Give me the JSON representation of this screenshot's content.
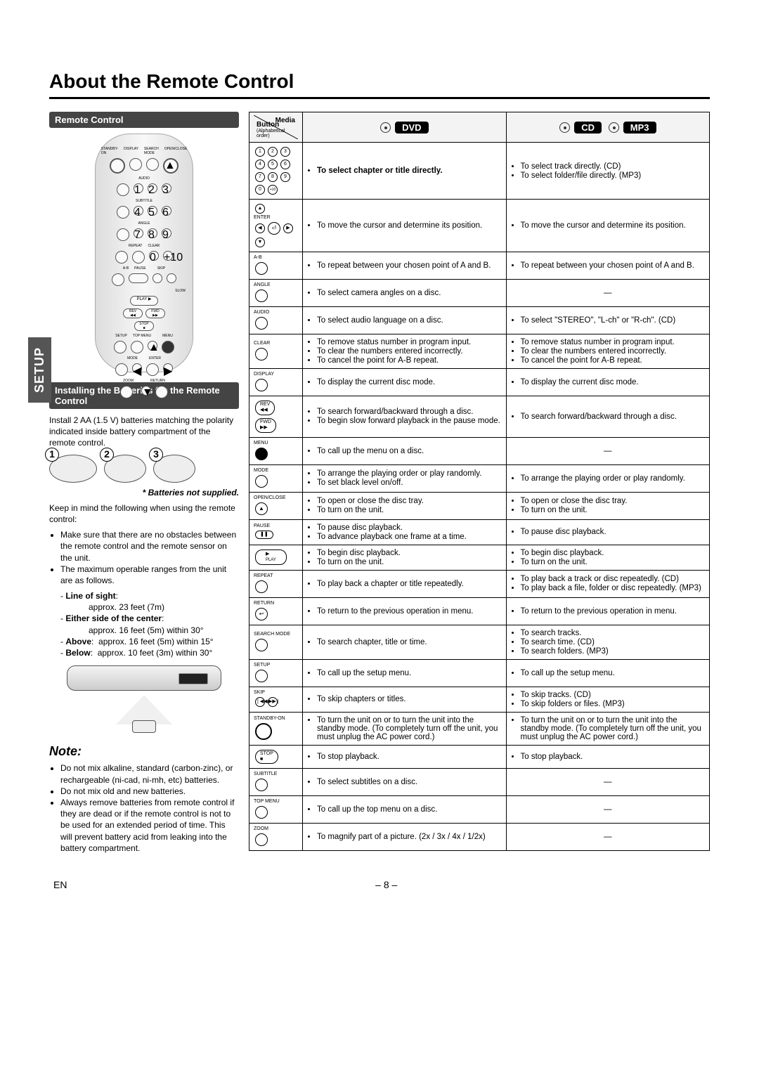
{
  "page": {
    "title": "About the Remote Control",
    "side_tab": "SETUP",
    "footer_left": "EN",
    "footer_center": "– 8 –"
  },
  "left": {
    "remote_header": "Remote Control",
    "install_header": "Installing the Batteries for the Remote Control",
    "install_para": "Install 2 AA (1.5 V) batteries matching the polarity indicated inside battery compartment of the remote control.",
    "steps": [
      "1",
      "2",
      "3"
    ],
    "not_supplied": "* Batteries not supplied.",
    "keep": "Keep in mind the following when using the remote control:",
    "bul1": "Make sure that there are no obstacles between the remote control and the remote sensor on the unit.",
    "bul2": "The maximum operable ranges from the unit are as follows.",
    "los_label": "Line of sight",
    "los_val": "approx. 23 feet (7m)",
    "side_label": "Either side of the center",
    "side_val": "approx. 16 feet (5m) within 30°",
    "above_label": "Above",
    "above_val": "approx. 16 feet (5m) within 15°",
    "below_label": "Below",
    "below_val": "approx. 10 feet (3m) within 30°",
    "note_title": "Note:",
    "note1": "Do not mix alkaline, standard (carbon-zinc), or rechargeable (ni-cad, ni-mh, etc) batteries.",
    "note2": "Do not mix old and new batteries.",
    "note3": "Always remove batteries from remote control if they are dead or if the remote control is not to be used for an extended period of time. This will prevent battery acid from leaking into the battery compartment."
  },
  "table": {
    "hdr_media": "Media",
    "hdr_button": "Button",
    "hdr_button_sub": "(Alphabetical order)",
    "hdr_dvd": "DVD",
    "hdr_cd": "CD",
    "hdr_mp3": "MP3",
    "rows": [
      {
        "icon": "numpad",
        "dvd": [
          "To select chapter or title directly."
        ],
        "cd": [
          "To select track directly. (CD)",
          "To select folder/file directly. (MP3)"
        ],
        "dvd_bold": true
      },
      {
        "icon": "arrows",
        "lbl": "ENTER",
        "dvd": [
          "To move the cursor and determine its position."
        ],
        "cd": [
          "To move the cursor and determine its position."
        ]
      },
      {
        "icon": "btn",
        "lbl": "A-B",
        "dvd": [
          "To repeat between your chosen point of A and B."
        ],
        "cd": [
          "To repeat between your chosen point of A and B."
        ]
      },
      {
        "icon": "btn",
        "lbl": "ANGLE",
        "dvd": [
          "To select camera angles on a disc."
        ],
        "cd": "dash"
      },
      {
        "icon": "btn",
        "lbl": "AUDIO",
        "dvd": [
          "To select audio language on a disc."
        ],
        "cd": [
          "To select \"STEREO\", \"L-ch\" or \"R-ch\". (CD)"
        ]
      },
      {
        "icon": "btn",
        "lbl": "CLEAR",
        "dvd": [
          "To remove status number in program input.",
          "To clear the numbers entered incorrectly.",
          "To cancel the point for A-B repeat."
        ],
        "cd": [
          "To remove status number in program input.",
          "To clear the numbers entered incorrectly.",
          "To cancel the point for A-B repeat."
        ]
      },
      {
        "icon": "btn",
        "lbl": "DISPLAY",
        "dvd": [
          "To display the current disc mode."
        ],
        "cd": [
          "To display the current disc mode."
        ]
      },
      {
        "icon": "revfwd",
        "dvd": [
          "To search forward/backward through a disc.",
          "To begin slow forward playback in the pause mode."
        ],
        "cd": [
          "To search forward/backward through a disc."
        ]
      },
      {
        "icon": "solid",
        "lbl": "MENU",
        "dvd": [
          "To call up the menu on a disc."
        ],
        "cd": "dash"
      },
      {
        "icon": "btn",
        "lbl": "MODE",
        "dvd": [
          "To arrange the playing order or play randomly.",
          "To set black level on/off."
        ],
        "cd": [
          "To arrange the playing order or play randomly."
        ]
      },
      {
        "icon": "eject",
        "lbl": "OPEN/CLOSE",
        "dvd": [
          "To open or close the disc tray.",
          "To turn on the unit."
        ],
        "cd": [
          "To open or close the disc tray.",
          "To turn on the unit."
        ]
      },
      {
        "icon": "pause",
        "lbl": "PAUSE",
        "dvd": [
          "To pause disc playback.",
          "To advance playback one frame at a time."
        ],
        "cd": [
          "To pause disc playback."
        ]
      },
      {
        "icon": "play",
        "lbl": "PLAY",
        "dvd": [
          "To begin disc playback.",
          "To turn on the unit."
        ],
        "cd": [
          "To begin disc playback.",
          "To turn on the unit."
        ]
      },
      {
        "icon": "btn",
        "lbl": "REPEAT",
        "dvd": [
          "To play back a chapter or title repeatedly."
        ],
        "cd": [
          "To play back a track or disc repeatedly. (CD)",
          "To play back a file, folder or disc repeatedly. (MP3)"
        ]
      },
      {
        "icon": "return",
        "lbl": "RETURN",
        "dvd": [
          "To return to the previous operation in menu."
        ],
        "cd": [
          "To return to the previous operation in menu."
        ]
      },
      {
        "icon": "btn",
        "lbl": "SEARCH MODE",
        "dvd": [
          "To search chapter, title or time."
        ],
        "cd": [
          "To search tracks.",
          "To search time. (CD)",
          "To search folders. (MP3)"
        ]
      },
      {
        "icon": "btn",
        "lbl": "SETUP",
        "dvd": [
          "To call up the setup menu."
        ],
        "cd": [
          "To call up the setup menu."
        ]
      },
      {
        "icon": "skip",
        "lbl": "SKIP",
        "dvd": [
          "To skip chapters or titles."
        ],
        "cd": [
          "To skip tracks. (CD)",
          "To skip folders or files. (MP3)"
        ]
      },
      {
        "icon": "big",
        "lbl": "STANDBY-ON",
        "dvd": [
          "To turn the unit on or to turn the unit into the standby mode. (To completely turn off the unit, you must unplug the AC power cord.)"
        ],
        "cd": [
          "To turn the unit on or to turn the unit into the standby mode. (To completely turn off the unit, you must unplug the AC power cord.)"
        ]
      },
      {
        "icon": "stop",
        "lbl": "STOP",
        "dvd": [
          "To stop playback."
        ],
        "cd": [
          "To stop playback."
        ]
      },
      {
        "icon": "btn",
        "lbl": "SUBTITLE",
        "dvd": [
          "To select subtitles on a disc."
        ],
        "cd": "dash"
      },
      {
        "icon": "btn",
        "lbl": "TOP MENU",
        "dvd": [
          "To call up the top menu on a disc."
        ],
        "cd": "dash"
      },
      {
        "icon": "btn",
        "lbl": "ZOOM",
        "dvd": [
          "To magnify part of a picture. (2x / 3x / 4x / 1/2x)"
        ],
        "cd": "dash"
      }
    ]
  }
}
